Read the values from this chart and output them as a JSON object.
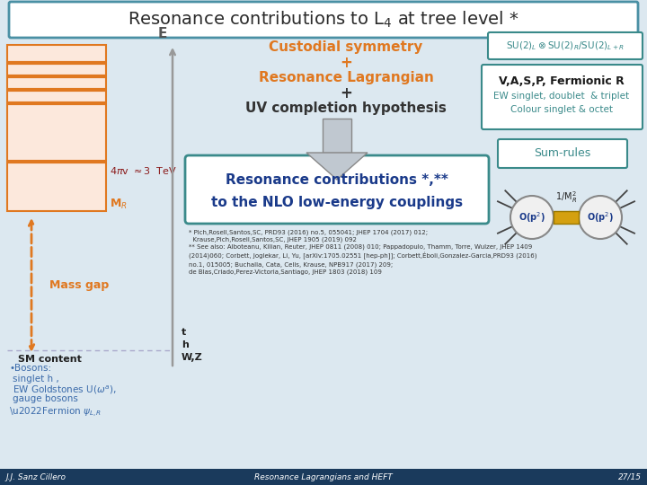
{
  "title": "Resonance contributions to L$_4$ at tree level *",
  "bg_color": "#dce8f0",
  "title_box_edge": "#4a90a4",
  "footer_bg": "#1a3a5c",
  "footer_text_left": "J.J. Sanz Cillero",
  "footer_text_center": "Resonance Lagrangians and HEFT",
  "footer_text_right": "27/15",
  "orange": "#e07820",
  "dark_red": "#8b1a1a",
  "teal": "#3a8a8a",
  "blue_dark": "#1a3a8a",
  "arrow_gray": "#c0c8d0",
  "left_box_fill": "#fce8dc",
  "left_box_edge": "#e07820",
  "sm_content_color": "#222222",
  "bosons_color": "#3a6aaa",
  "fermion_color": "#3a6aaa"
}
